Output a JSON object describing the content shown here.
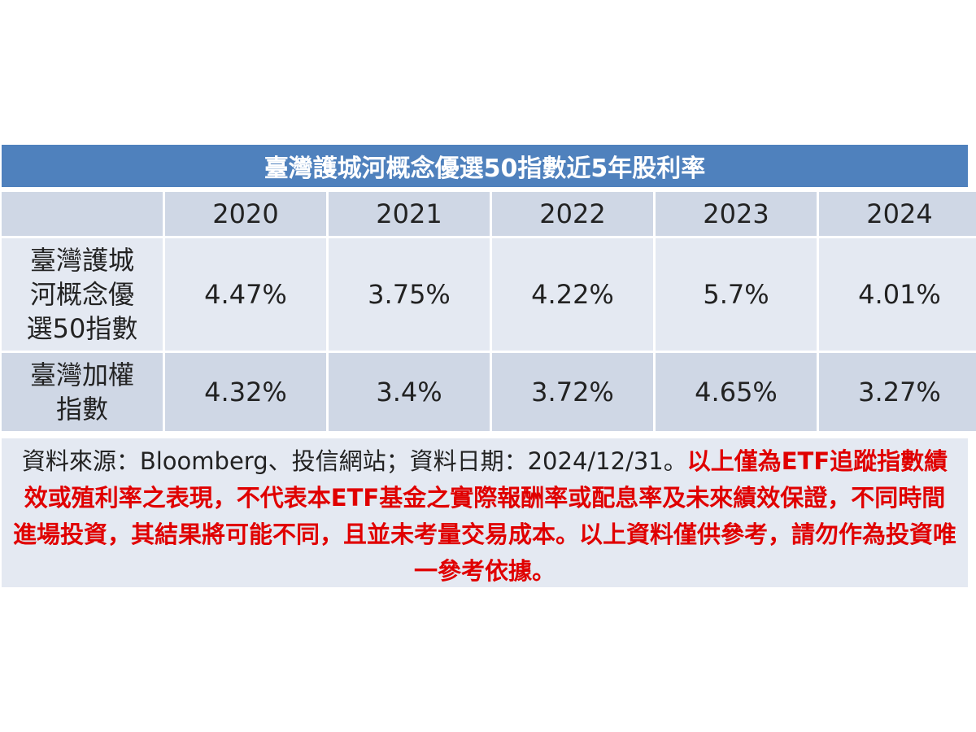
{
  "chart_data": {
    "type": "table",
    "title": "臺灣護城河概念優選50指數近5年股利率",
    "columns": [
      "",
      "2020",
      "2021",
      "2022",
      "2023",
      "2024"
    ],
    "rows": [
      {
        "label_lines": [
          "臺灣護城",
          "河概念優",
          "選50指數"
        ],
        "values": [
          "4.47%",
          "3.75%",
          "4.22%",
          "5.7%",
          "4.01%"
        ]
      },
      {
        "label_lines": [
          "臺灣加權",
          "指數"
        ],
        "values": [
          "4.32%",
          "3.4%",
          "3.72%",
          "4.65%",
          "3.27%"
        ]
      }
    ]
  },
  "note": {
    "source_text": "資料來源：Bloomberg、投信網站；資料日期：2024/12/31。",
    "disclaimer_text": "以上僅為ETF追蹤指數績效或殖利率之表現，不代表本ETF基金之實際報酬率或配息率及未來績效保證，不同時間進場投資，其結果將可能不同，且並未考量交易成本。以上資料僅供參考，請勿作為投資唯一參考依據。"
  },
  "colors": {
    "title_bg": "#4f81bd",
    "header_bg": "#cfd7e5",
    "row_light": "#e4e9f2",
    "row_dark": "#cfd7e5",
    "disclaimer": "#e00000"
  }
}
